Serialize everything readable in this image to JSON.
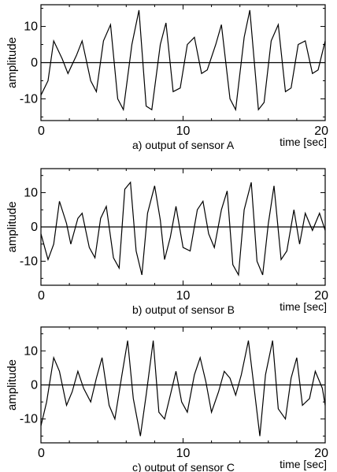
{
  "chart_data": [
    {
      "type": "line",
      "caption": "a) output of sensor A",
      "xlabel": "time [sec]",
      "ylabel": "amplitude",
      "xlim": [
        0,
        20
      ],
      "ylim": [
        -16,
        16
      ],
      "xticks": [
        0,
        10,
        20
      ],
      "yticks": [
        10,
        0,
        -10
      ],
      "zero_line": true,
      "series": [
        {
          "x": [
            0,
            0.5,
            0.9,
            1.5,
            1.9,
            2.5,
            2.9,
            3.5,
            3.9,
            4.4,
            4.9,
            5.4,
            5.8,
            6.4,
            6.9,
            7.4,
            7.8,
            8.4,
            8.8,
            9.3,
            9.8,
            10.3,
            10.8,
            11.3,
            11.7,
            12.3,
            12.7,
            13.3,
            13.7,
            14.3,
            14.7,
            15.3,
            15.7,
            16.2,
            16.7,
            17.2,
            17.6,
            18.1,
            18.6,
            19.1,
            19.5,
            20
          ],
          "y": [
            -9,
            -5,
            6,
            1,
            -3,
            2,
            6,
            -5,
            -8,
            6,
            10.5,
            -10,
            -13,
            5,
            14.5,
            -12,
            -13,
            5,
            11,
            -8,
            -7,
            5,
            7,
            -3,
            -2,
            5,
            10.5,
            -10,
            -13,
            7,
            14.5,
            -13,
            -11,
            6,
            10.5,
            -8,
            -7,
            5,
            6,
            -3,
            -2,
            6
          ]
        }
      ]
    },
    {
      "type": "line",
      "caption": "b) output of sensor B",
      "xlabel": "time [sec]",
      "ylabel": "amplitude",
      "xlim": [
        0,
        20
      ],
      "ylim": [
        -17,
        17
      ],
      "xticks": [
        0,
        10,
        20
      ],
      "yticks": [
        10,
        0,
        -10
      ],
      "zero_line": true,
      "series": [
        {
          "x": [
            0,
            0.5,
            0.9,
            1.3,
            1.8,
            2.1,
            2.6,
            2.9,
            3.4,
            3.8,
            4.2,
            4.6,
            5.1,
            5.5,
            5.9,
            6.3,
            6.7,
            7.1,
            7.5,
            8.0,
            8.4,
            8.7,
            9.1,
            9.5,
            10.0,
            10.5,
            11.0,
            11.4,
            11.8,
            12.2,
            12.7,
            13.1,
            13.5,
            13.9,
            14.3,
            14.8,
            15.2,
            15.6,
            16.0,
            16.4,
            16.9,
            17.3,
            17.8,
            18.2,
            18.6,
            19.1,
            19.6,
            20
          ],
          "y": [
            -2,
            -9.5,
            -5,
            7.5,
            1,
            -5,
            2.5,
            4,
            -6,
            -9,
            2.5,
            6,
            -9,
            -12,
            11,
            13,
            -7,
            -14,
            4,
            12,
            2,
            -9.5,
            -3,
            6,
            -6,
            -7,
            5,
            7.5,
            -2,
            -6,
            5,
            10.5,
            -11,
            -14,
            5,
            13,
            -10,
            -14,
            1,
            12,
            -9.5,
            -7,
            5,
            -5,
            4,
            -1,
            4,
            -1
          ]
        }
      ]
    },
    {
      "type": "line",
      "caption": "c) output of sensor C",
      "xlabel": "time [sec]",
      "ylabel": "amplitude",
      "xlim": [
        0,
        20
      ],
      "ylim": [
        -17,
        17
      ],
      "xticks": [
        0,
        10,
        20
      ],
      "yticks": [
        10,
        0,
        -10
      ],
      "zero_line": true,
      "series": [
        {
          "x": [
            0,
            0.4,
            0.9,
            1.3,
            1.8,
            2.2,
            2.6,
            3.0,
            3.5,
            3.9,
            4.3,
            4.8,
            5.2,
            5.7,
            6.1,
            6.5,
            7.0,
            7.4,
            7.9,
            8.3,
            8.7,
            9.1,
            9.5,
            9.9,
            10.3,
            10.8,
            11.2,
            11.6,
            12.0,
            12.5,
            12.9,
            13.3,
            13.7,
            14.1,
            14.6,
            15.0,
            15.4,
            15.8,
            16.3,
            16.7,
            17.2,
            17.6,
            18.0,
            18.4,
            18.9,
            19.3,
            19.8,
            20
          ],
          "y": [
            -12,
            -5,
            8,
            4,
            -6,
            -2,
            4,
            -1,
            -5,
            2,
            8,
            -6,
            -10,
            3,
            13,
            -4,
            -15,
            -3,
            13,
            -8,
            -10,
            -3,
            4,
            -5,
            -8,
            3,
            8,
            1,
            -8,
            -2,
            4,
            2,
            -3,
            3,
            13,
            -1,
            -15,
            3,
            13,
            -7,
            -10,
            2,
            8,
            -6,
            -4,
            4,
            -1,
            -6
          ]
        }
      ]
    }
  ]
}
